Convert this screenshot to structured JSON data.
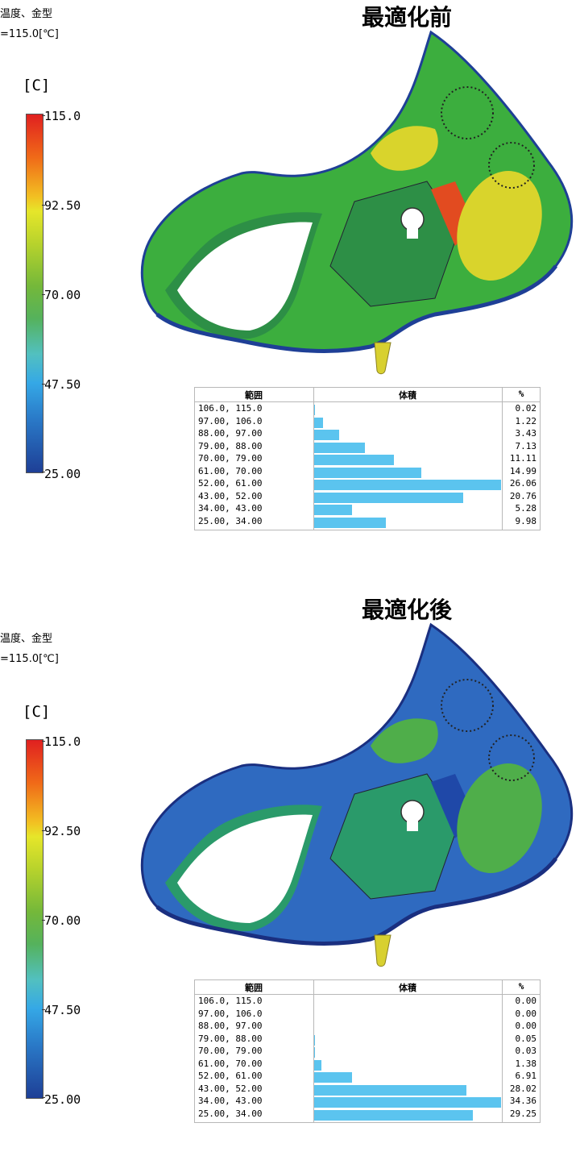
{
  "panels": [
    {
      "title": "最適化前",
      "info_line1": "温度、金型",
      "info_line2": "=115.0[℃]",
      "unit": "[C]",
      "ticks": [
        "115.0",
        "92.50",
        "70.00",
        "47.50",
        "25.00"
      ],
      "table": {
        "col_range": "範囲",
        "col_volume": "体積",
        "col_pct": "%",
        "rows": [
          {
            "range": "106.0, 115.0",
            "pct": "0.02",
            "value": 0.02
          },
          {
            "range": "97.00, 106.0",
            "pct": "1.22",
            "value": 1.22
          },
          {
            "range": "88.00, 97.00",
            "pct": "3.43",
            "value": 3.43
          },
          {
            "range": "79.00, 88.00",
            "pct": "7.13",
            "value": 7.13
          },
          {
            "range": "70.00, 79.00",
            "pct": "11.11",
            "value": 11.11
          },
          {
            "range": "61.00, 70.00",
            "pct": "14.99",
            "value": 14.99
          },
          {
            "range": "52.00, 61.00",
            "pct": "26.06",
            "value": 26.06
          },
          {
            "range": "43.00, 52.00",
            "pct": "20.76",
            "value": 20.76
          },
          {
            "range": "34.00, 43.00",
            "pct": "5.28",
            "value": 5.28
          },
          {
            "range": "25.00, 34.00",
            "pct": "9.98",
            "value": 9.98
          }
        ]
      },
      "colors": {
        "base": "#3cae3e",
        "shade": "#2d8f46",
        "hot": "#e24b20",
        "warm": "#d9d42c",
        "edge": "#1e3f96"
      }
    },
    {
      "title": "最適化後",
      "info_line1": "温度、金型",
      "info_line2": "=115.0[℃]",
      "unit": "[C]",
      "ticks": [
        "115.0",
        "92.50",
        "70.00",
        "47.50",
        "25.00"
      ],
      "table": {
        "col_range": "範囲",
        "col_volume": "体積",
        "col_pct": "%",
        "rows": [
          {
            "range": "106.0, 115.0",
            "pct": "0.00",
            "value": 0.0
          },
          {
            "range": "97.00, 106.0",
            "pct": "0.00",
            "value": 0.0
          },
          {
            "range": "88.00, 97.00",
            "pct": "0.00",
            "value": 0.0
          },
          {
            "range": "79.00, 88.00",
            "pct": "0.05",
            "value": 0.05
          },
          {
            "range": "70.00, 79.00",
            "pct": "0.03",
            "value": 0.03
          },
          {
            "range": "61.00, 70.00",
            "pct": "1.38",
            "value": 1.38
          },
          {
            "range": "52.00, 61.00",
            "pct": "6.91",
            "value": 6.91
          },
          {
            "range": "43.00, 52.00",
            "pct": "28.02",
            "value": 28.02
          },
          {
            "range": "34.00, 43.00",
            "pct": "34.36",
            "value": 34.36
          },
          {
            "range": "25.00, 34.00",
            "pct": "29.25",
            "value": 29.25
          }
        ]
      },
      "colors": {
        "base": "#2f6ac0",
        "shade": "#2a9a6a",
        "hot": "#1f48a8",
        "warm": "#4fae4a",
        "edge": "#1a2f80"
      }
    }
  ]
}
